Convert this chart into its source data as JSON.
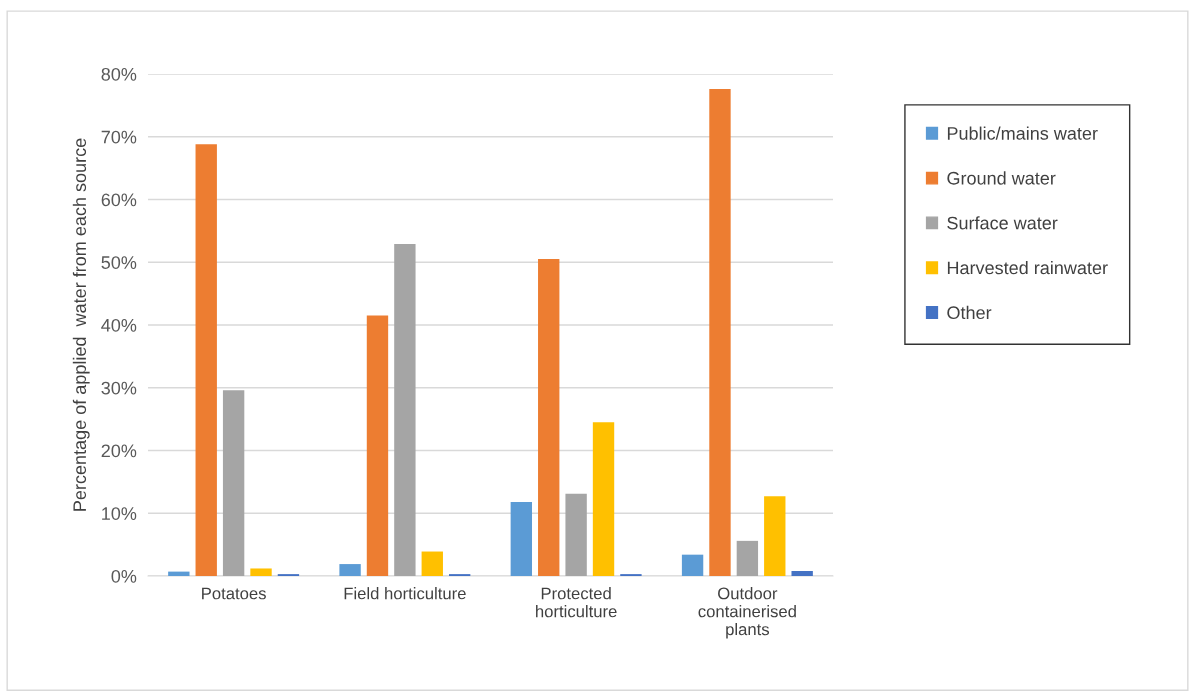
{
  "chart_data": {
    "type": "bar",
    "ylabel": "Percentage of applied  water from each source",
    "categories": [
      "Potatoes",
      "Field horticulture",
      "Protected\nhorticulture",
      "Outdoor\ncontainerised\nplants"
    ],
    "series": [
      {
        "name": "Public/mains water",
        "color": "#5b9bd5",
        "values": [
          0.7,
          1.9,
          11.8,
          3.4
        ]
      },
      {
        "name": "Ground water",
        "color": "#ed7d31",
        "values": [
          68.8,
          41.5,
          50.5,
          77.6
        ]
      },
      {
        "name": "Surface water",
        "color": "#a5a5a5",
        "values": [
          29.6,
          52.9,
          13.1,
          5.6
        ]
      },
      {
        "name": "Harvested rainwater",
        "color": "#ffc000",
        "values": [
          1.2,
          3.9,
          24.5,
          12.7
        ]
      },
      {
        "name": "Other",
        "color": "#4472c4",
        "values": [
          0.3,
          0.3,
          0.3,
          0.8
        ]
      }
    ],
    "ylim": [
      0,
      80
    ],
    "yticks": [
      {
        "value": 0,
        "label": "0%"
      },
      {
        "value": 10,
        "label": "10%"
      },
      {
        "value": 20,
        "label": "20%"
      },
      {
        "value": 30,
        "label": "30%"
      },
      {
        "value": 40,
        "label": "40%"
      },
      {
        "value": 50,
        "label": "50%"
      },
      {
        "value": 60,
        "label": "60%"
      },
      {
        "value": 70,
        "label": "70%"
      },
      {
        "value": 80,
        "label": "80%"
      }
    ],
    "grid": "y",
    "legend": "right"
  }
}
